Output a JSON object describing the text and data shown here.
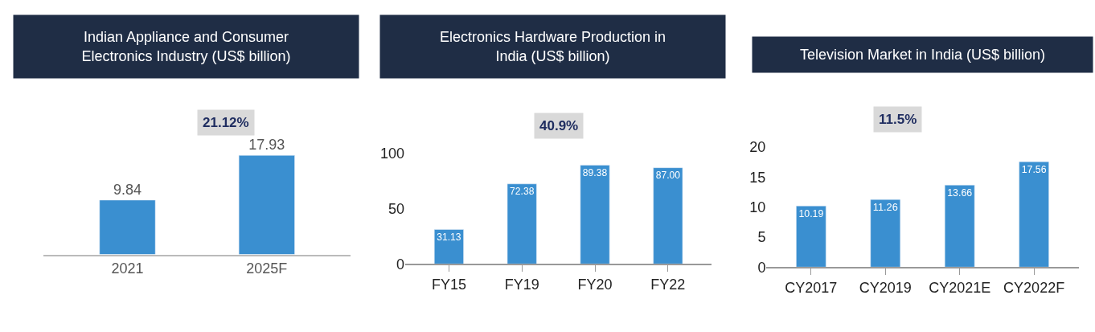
{
  "chart_data": [
    {
      "type": "bar",
      "title": "Indian Appliance and Consumer Electronics Industry (US$ billion)",
      "categories": [
        "2021",
        "2025F"
      ],
      "values": [
        9.84,
        17.93
      ],
      "value_labels": [
        "9.84",
        "17.93"
      ],
      "color": "#3a8fd0",
      "tick_labels": "x",
      "annotations": [
        "21.12%"
      ]
    },
    {
      "type": "bar",
      "title": "Electronics Hardware Production in India (US$ billion)",
      "categories": [
        "FY15",
        "FY19",
        "FY20",
        "FY22"
      ],
      "values": [
        31.13,
        72.38,
        89.38,
        87.0
      ],
      "value_labels": [
        "31.13",
        "72.38",
        "89.38",
        "87.00"
      ],
      "color": "#3a8fd0",
      "ylim": [
        0,
        100
      ],
      "yticks": [
        0,
        50,
        100
      ],
      "annotations": [
        "40.9%"
      ]
    },
    {
      "type": "bar",
      "title": "Television Market in India (US$ billion)",
      "categories": [
        "CY2017",
        "CY2019",
        "CY2021E",
        "CY2022F"
      ],
      "values": [
        10.19,
        11.26,
        13.66,
        17.56
      ],
      "value_labels": [
        "10.19",
        "11.26",
        "13.66",
        "17.56"
      ],
      "color": "#3a8fd0",
      "ylim": [
        0,
        20
      ],
      "yticks": [
        0,
        5,
        10,
        15,
        20
      ],
      "annotations": [
        "11.5%"
      ]
    }
  ]
}
